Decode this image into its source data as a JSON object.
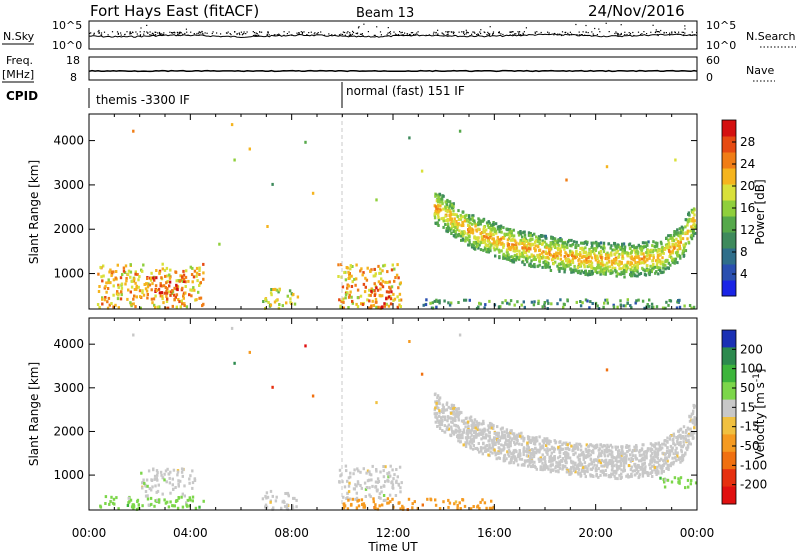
{
  "header": {
    "station": "Fort Hays East (fitACF)",
    "beam": "Beam 13",
    "date": "24/Nov/2016"
  },
  "mini_panels": {
    "left_labels": {
      "nsky": "N.Sky",
      "freq": "Freq.",
      "mhz": "[MHz]",
      "cpid": "CPID"
    },
    "right_labels": {
      "nsearch": "N.Search",
      "nave": "Nave"
    },
    "nsky_ticks": {
      "top": "10^5",
      "bottom": "10^0"
    },
    "freq_ticks": {
      "top": "18",
      "bottom": "8"
    },
    "nave_ticks": {
      "top": "60",
      "bottom": "0"
    },
    "cpid_segments": [
      {
        "label": "themis -3300 IF",
        "start_hour": 0
      },
      {
        "label": "normal (fast) 151 IF",
        "start_hour": 10
      }
    ]
  },
  "x_axis": {
    "title": "Time UT",
    "ticks": [
      "00:00",
      "04:00",
      "08:00",
      "12:00",
      "16:00",
      "20:00",
      "00:00"
    ]
  },
  "chart_data": [
    {
      "type": "heatmap",
      "panel": "power",
      "ylabel": "Slant Range [km]",
      "yticks": [
        "1000",
        "2000",
        "3000",
        "4000"
      ],
      "ylim": [
        200,
        4600
      ],
      "xlim_hours": [
        0,
        24
      ],
      "colorbar": {
        "label": "Power [dB]",
        "ticks": [
          "4",
          "8",
          "12",
          "16",
          "20",
          "24",
          "28"
        ],
        "range": [
          0,
          32
        ],
        "colors": [
          "#1a24e6",
          "#2a4fb0",
          "#2f6e8a",
          "#3e8a5c",
          "#55a84a",
          "#8fcf3c",
          "#d9e03a",
          "#f5b41e",
          "#f07d16",
          "#e64a12",
          "#d41010"
        ]
      },
      "regions": [
        {
          "t": [
            0.3,
            4.5
          ],
          "r": [
            200,
            1200
          ],
          "level": 22
        },
        {
          "t": [
            2.2,
            3.8
          ],
          "r": [
            400,
            950
          ],
          "level": 27
        },
        {
          "t": [
            6.8,
            8.2
          ],
          "r": [
            200,
            650
          ],
          "level": 18
        },
        {
          "t": [
            9.8,
            12.3
          ],
          "r": [
            200,
            1200
          ],
          "level": 22
        },
        {
          "t": [
            11.0,
            12.0
          ],
          "r": [
            200,
            700
          ],
          "level": 27
        },
        {
          "t": [
            13.0,
            24.0
          ],
          "r": [
            200,
            400
          ],
          "level": 10
        }
      ],
      "band": {
        "t": [
          13.6,
          23.9
        ],
        "center_km": [
          [
            13.6,
            2500
          ],
          [
            15.0,
            1950
          ],
          [
            16.5,
            1650
          ],
          [
            18.0,
            1450
          ],
          [
            19.5,
            1330
          ],
          [
            21.0,
            1280
          ],
          [
            22.5,
            1350
          ],
          [
            23.4,
            1700
          ],
          [
            23.9,
            2300
          ]
        ],
        "core_level": 24,
        "edge_level": 10
      },
      "sparse_points": [
        {
          "t": 1.7,
          "r": 4200
        },
        {
          "t": 5.6,
          "r": 4350
        },
        {
          "t": 5.7,
          "r": 3550
        },
        {
          "t": 6.3,
          "r": 3800
        },
        {
          "t": 7.2,
          "r": 3000
        },
        {
          "t": 8.5,
          "r": 3950
        },
        {
          "t": 8.8,
          "r": 2800
        },
        {
          "t": 11.3,
          "r": 2650
        },
        {
          "t": 12.6,
          "r": 4050
        },
        {
          "t": 14.6,
          "r": 4200
        },
        {
          "t": 13.1,
          "r": 3300
        },
        {
          "t": 5.1,
          "r": 1650
        },
        {
          "t": 7.0,
          "r": 2050
        },
        {
          "t": 18.8,
          "r": 3100
        },
        {
          "t": 20.4,
          "r": 3400
        },
        {
          "t": 23.1,
          "r": 3550
        }
      ]
    },
    {
      "type": "heatmap",
      "panel": "velocity",
      "ylabel": "Slant Range [km]",
      "yticks": [
        "1000",
        "2000",
        "3000",
        "4000"
      ],
      "ylim": [
        200,
        4600
      ],
      "xlim_hours": [
        0,
        24
      ],
      "colorbar": {
        "label": "Velocity [m s^-1]",
        "ticks": [
          "200",
          "100",
          "50",
          "15",
          "-15",
          "-50",
          "-100",
          "-200"
        ],
        "colors": [
          "#1a30b4",
          "#2c8a4e",
          "#3db53c",
          "#7cd64a",
          "#c8c8c8",
          "#f0c040",
          "#f59a20",
          "#f07010",
          "#e63010",
          "#e01010"
        ]
      },
      "regions": [
        {
          "t": [
            0.3,
            4.5
          ],
          "r": [
            200,
            500
          ],
          "color_index": 3
        },
        {
          "t": [
            2.0,
            4.2
          ],
          "r": [
            500,
            1150
          ],
          "color_index": 4
        },
        {
          "t": [
            6.8,
            8.2
          ],
          "r": [
            200,
            650
          ],
          "color_index": 4
        },
        {
          "t": [
            9.8,
            12.3
          ],
          "r": [
            400,
            1200
          ],
          "color_index": 4
        },
        {
          "t": [
            10.0,
            16.0
          ],
          "r": [
            200,
            450
          ],
          "color_index": 6
        },
        {
          "t": [
            22.5,
            24.0
          ],
          "r": [
            700,
            950
          ],
          "color_index": 3
        }
      ],
      "band": {
        "t": [
          13.6,
          23.9
        ],
        "center_km": [
          [
            13.6,
            2500
          ],
          [
            15.0,
            1950
          ],
          [
            16.5,
            1650
          ],
          [
            18.0,
            1450
          ],
          [
            19.5,
            1330
          ],
          [
            21.0,
            1280
          ],
          [
            22.5,
            1350
          ],
          [
            23.4,
            1700
          ],
          [
            23.9,
            2300
          ]
        ],
        "color_index": 4
      },
      "sparse_points": [
        {
          "t": 1.7,
          "r": 4200
        },
        {
          "t": 5.6,
          "r": 4350
        },
        {
          "t": 5.7,
          "r": 3550
        },
        {
          "t": 6.3,
          "r": 3800
        },
        {
          "t": 7.2,
          "r": 3000
        },
        {
          "t": 8.5,
          "r": 3950
        },
        {
          "t": 8.8,
          "r": 2800
        },
        {
          "t": 11.3,
          "r": 2650
        },
        {
          "t": 12.6,
          "r": 4050
        },
        {
          "t": 14.6,
          "r": 4200
        },
        {
          "t": 13.1,
          "r": 3300
        },
        {
          "t": 20.4,
          "r": 3400
        }
      ]
    }
  ]
}
